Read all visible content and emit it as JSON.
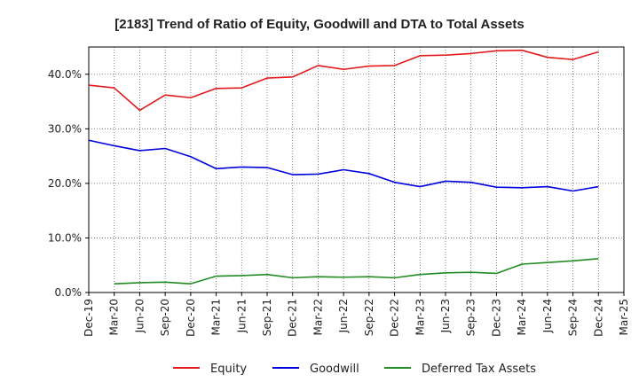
{
  "chart_data": {
    "type": "line",
    "title": "[2183]  Trend of Ratio of Equity, Goodwill and DTA to Total Assets",
    "xlabel": "",
    "ylabel": "",
    "ylim": [
      0,
      45
    ],
    "y_ticks": [
      0,
      10,
      20,
      30,
      40
    ],
    "y_tick_labels": [
      "0.0%",
      "10.0%",
      "20.0%",
      "30.0%",
      "40.0%"
    ],
    "grid": true,
    "legend_position": "bottom",
    "categories": [
      "Dec-19",
      "Mar-20",
      "Jun-20",
      "Sep-20",
      "Dec-20",
      "Mar-21",
      "Jun-21",
      "Sep-21",
      "Dec-21",
      "Mar-22",
      "Jun-22",
      "Sep-22",
      "Dec-22",
      "Mar-23",
      "Jun-23",
      "Sep-23",
      "Dec-23",
      "Mar-24",
      "Jun-24",
      "Sep-24",
      "Dec-24",
      "Mar-25"
    ],
    "series": [
      {
        "name": "Equity",
        "color": "#e31a1c",
        "values": [
          38.0,
          37.5,
          33.4,
          36.2,
          35.7,
          37.4,
          37.5,
          39.3,
          39.5,
          41.6,
          40.9,
          41.5,
          41.6,
          43.4,
          43.5,
          43.8,
          44.3,
          44.4,
          43.1,
          42.7,
          44.1,
          null
        ]
      },
      {
        "name": "Goodwill",
        "color": "#0000dd",
        "values": [
          27.9,
          26.9,
          26.0,
          26.4,
          24.9,
          22.7,
          23.0,
          22.9,
          21.6,
          21.7,
          22.5,
          21.8,
          20.2,
          19.4,
          20.4,
          20.2,
          19.3,
          19.2,
          19.4,
          18.6,
          19.4,
          null
        ]
      },
      {
        "name": "Deferred Tax Assets",
        "color": "#228b22",
        "values": [
          null,
          1.6,
          1.8,
          1.9,
          1.6,
          3.0,
          3.1,
          3.3,
          2.7,
          2.9,
          2.8,
          2.9,
          2.7,
          3.3,
          3.6,
          3.7,
          3.5,
          5.2,
          5.5,
          5.8,
          6.2,
          null
        ]
      }
    ]
  }
}
